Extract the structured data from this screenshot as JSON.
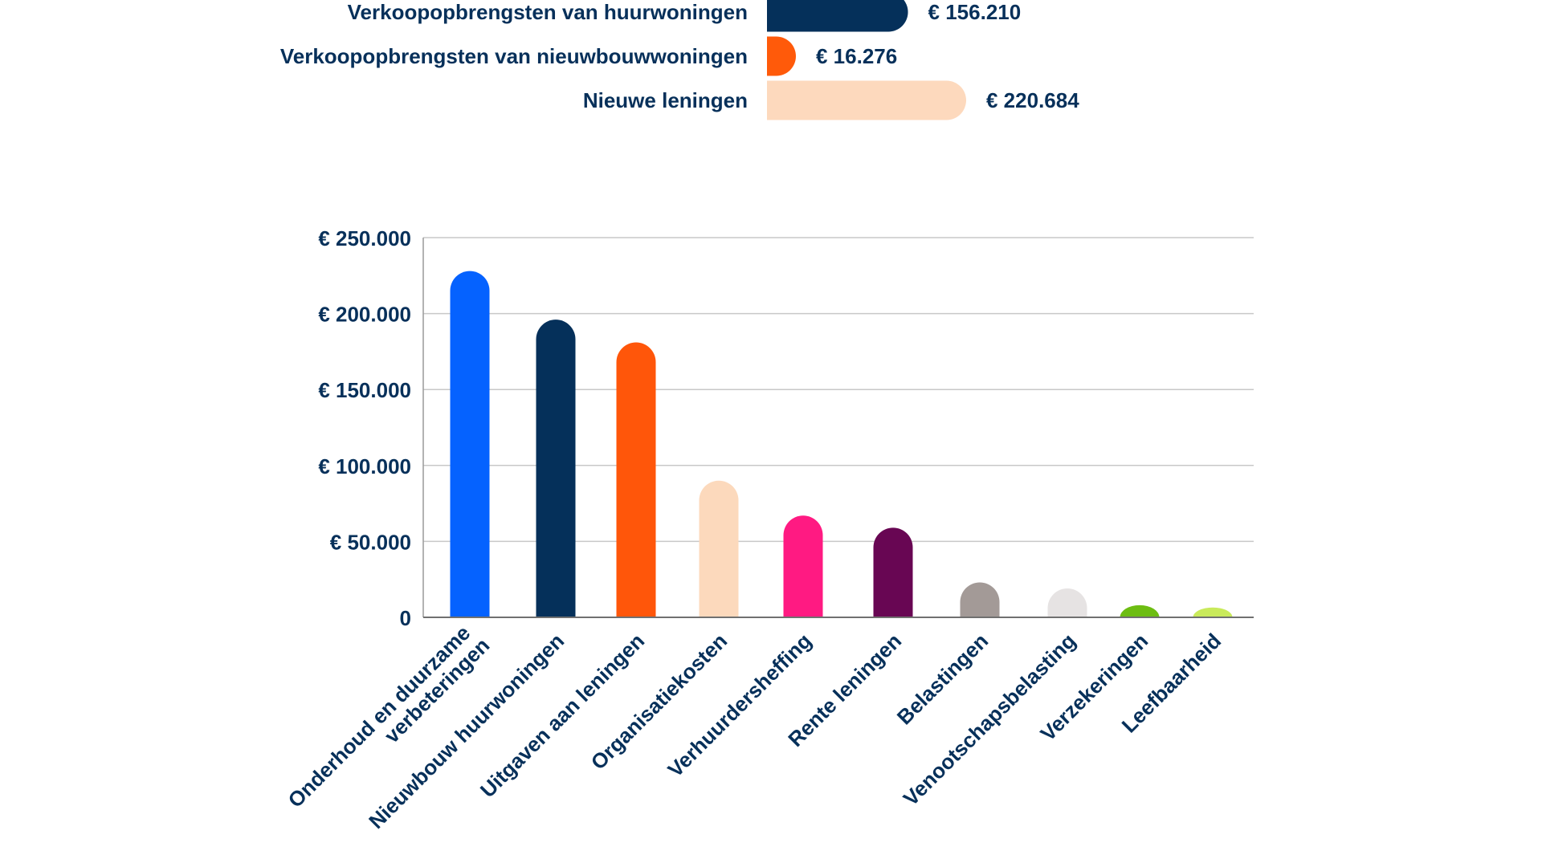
{
  "chart_data": [
    {
      "type": "bar",
      "orientation": "horizontal",
      "categories": [
        "Verkoopopbrengsten van huurwoningen",
        "Verkoopopbrengsten van nieuwbouwwoningen",
        "Nieuwe leningen"
      ],
      "values": [
        156210,
        16276,
        220684
      ],
      "value_labels": [
        "€ 156.210",
        "€ 16.276",
        "€ 220.684"
      ],
      "colors": [
        "#05305a",
        "#ff5a0a",
        "#fdd9bd"
      ],
      "xlim": [
        0,
        250000
      ]
    },
    {
      "type": "bar",
      "orientation": "vertical",
      "title": "",
      "xlabel": "",
      "ylabel": "",
      "categories": [
        [
          "Onderhoud en duurzame",
          "verbeteringen"
        ],
        [
          "Nieuwbouw huurwoningen"
        ],
        [
          "Uitgaven aan leningen"
        ],
        [
          "Organisatiekosten"
        ],
        [
          "Verhuurdersheffing"
        ],
        [
          "Rente leningen"
        ],
        [
          "Belastingen"
        ],
        [
          "Venootschapsbelasting"
        ],
        [
          "Verzekeringen"
        ],
        [
          "Leefbaarheid"
        ]
      ],
      "values": [
        228000,
        196000,
        181000,
        90000,
        67000,
        59000,
        23000,
        19000,
        8000,
        6500
      ],
      "colors": [
        "#0562ff",
        "#05305a",
        "#ff560a",
        "#fcd9bc",
        "#ff1a82",
        "#680653",
        "#a39a97",
        "#e6e3e3",
        "#6dbd12",
        "#c9ea5b"
      ],
      "ylim": [
        0,
        250000
      ],
      "yticks": [
        0,
        50000,
        100000,
        150000,
        200000,
        250000
      ],
      "ytick_labels": [
        "0",
        "€ 50.000",
        "€ 100.000",
        "€ 150.000",
        "€ 200.000",
        "€ 250.000"
      ],
      "grid": true,
      "legend": "none"
    }
  ]
}
